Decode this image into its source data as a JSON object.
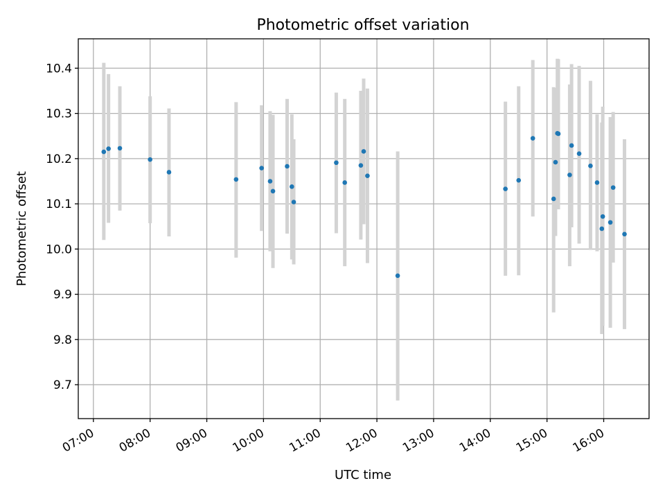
{
  "chart_data": {
    "type": "scatter",
    "title": "Photometric offset variation",
    "xlabel": "UTC time",
    "ylabel": "Photometric offset",
    "xlim": [
      "06:44",
      "16:48"
    ],
    "ylim": [
      9.625,
      10.465
    ],
    "grid": true,
    "x_ticks": [
      "07:00",
      "08:00",
      "09:00",
      "10:00",
      "11:00",
      "12:00",
      "13:00",
      "14:00",
      "15:00",
      "16:00"
    ],
    "y_ticks": [
      "9.7",
      "9.8",
      "9.9",
      "10.0",
      "10.1",
      "10.2",
      "10.3",
      "10.4"
    ],
    "colors": {
      "point": "#1f77b4",
      "errorbar": "#d3d3d3"
    },
    "points": [
      {
        "x": "07:11",
        "y": 10.215,
        "y_low": 10.02,
        "y_high": 10.412
      },
      {
        "x": "07:16",
        "y": 10.222,
        "y_low": 10.058,
        "y_high": 10.387
      },
      {
        "x": "07:28",
        "y": 10.223,
        "y_low": 10.085,
        "y_high": 10.36
      },
      {
        "x": "08:00",
        "y": 10.198,
        "y_low": 10.057,
        "y_high": 10.338
      },
      {
        "x": "08:20",
        "y": 10.17,
        "y_low": 10.028,
        "y_high": 10.311
      },
      {
        "x": "09:31",
        "y": 10.154,
        "y_low": 9.981,
        "y_high": 10.325
      },
      {
        "x": "09:58",
        "y": 10.179,
        "y_low": 10.04,
        "y_high": 10.318
      },
      {
        "x": "10:07",
        "y": 10.15,
        "y_low": 9.995,
        "y_high": 10.305
      },
      {
        "x": "10:10",
        "y": 10.128,
        "y_low": 9.958,
        "y_high": 10.297
      },
      {
        "x": "10:25",
        "y": 10.183,
        "y_low": 10.034,
        "y_high": 10.332
      },
      {
        "x": "10:30",
        "y": 10.138,
        "y_low": 9.977,
        "y_high": 10.298
      },
      {
        "x": "10:32",
        "y": 10.104,
        "y_low": 9.966,
        "y_high": 10.243
      },
      {
        "x": "11:17",
        "y": 10.191,
        "y_low": 10.035,
        "y_high": 10.346
      },
      {
        "x": "11:26",
        "y": 10.147,
        "y_low": 9.962,
        "y_high": 10.332
      },
      {
        "x": "11:43",
        "y": 10.185,
        "y_low": 10.021,
        "y_high": 10.35
      },
      {
        "x": "11:46",
        "y": 10.216,
        "y_low": 10.055,
        "y_high": 10.377
      },
      {
        "x": "11:50",
        "y": 10.162,
        "y_low": 9.969,
        "y_high": 10.355
      },
      {
        "x": "12:22",
        "y": 9.941,
        "y_low": 9.665,
        "y_high": 10.216
      },
      {
        "x": "14:16",
        "y": 10.133,
        "y_low": 9.941,
        "y_high": 10.326
      },
      {
        "x": "14:30",
        "y": 10.152,
        "y_low": 9.942,
        "y_high": 10.36
      },
      {
        "x": "14:45",
        "y": 10.245,
        "y_low": 10.072,
        "y_high": 10.418
      },
      {
        "x": "15:07",
        "y": 10.111,
        "y_low": 9.86,
        "y_high": 10.358
      },
      {
        "x": "15:09",
        "y": 10.192,
        "y_low": 10.029,
        "y_high": 10.356
      },
      {
        "x": "15:11",
        "y": 10.256,
        "y_low": 10.09,
        "y_high": 10.421
      },
      {
        "x": "15:12",
        "y": 10.255,
        "y_low": 10.088,
        "y_high": 10.42
      },
      {
        "x": "15:24",
        "y": 10.164,
        "y_low": 9.962,
        "y_high": 10.364
      },
      {
        "x": "15:26",
        "y": 10.229,
        "y_low": 10.048,
        "y_high": 10.409
      },
      {
        "x": "15:34",
        "y": 10.211,
        "y_low": 10.012,
        "y_high": 10.405
      },
      {
        "x": "15:46",
        "y": 10.184,
        "y_low": 9.998,
        "y_high": 10.372
      },
      {
        "x": "15:53",
        "y": 10.147,
        "y_low": 9.995,
        "y_high": 10.298
      },
      {
        "x": "15:58",
        "y": 10.045,
        "y_low": 9.812,
        "y_high": 10.28
      },
      {
        "x": "15:59",
        "y": 10.072,
        "y_low": 9.83,
        "y_high": 10.315
      },
      {
        "x": "16:07",
        "y": 10.059,
        "y_low": 9.826,
        "y_high": 10.292
      },
      {
        "x": "16:10",
        "y": 10.136,
        "y_low": 9.97,
        "y_high": 10.303
      },
      {
        "x": "16:22",
        "y": 10.033,
        "y_low": 9.823,
        "y_high": 10.243
      }
    ]
  }
}
